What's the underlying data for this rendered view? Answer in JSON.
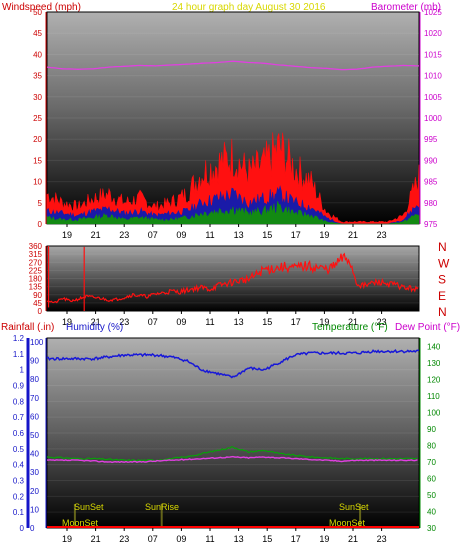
{
  "colors": {
    "windspeed": "#ff1010",
    "gust_band": "#1a1aa8",
    "wind_green": "#138a13",
    "barometer": "#e040e0",
    "direction": "#ff1010",
    "humidity": "#1818d8",
    "temperature": "#0aa00a",
    "dewpoint": "#e040e0",
    "rainfall": "#ff0000",
    "title": "#d8d800",
    "sun_labels": "#d8d800",
    "axis_red": "#cc0000",
    "axis_magenta": "#cc00cc",
    "axis_blue": "#1515c8",
    "axis_green": "#008800",
    "frame": "#000000"
  },
  "chart_data": [
    {
      "type": "line",
      "title": "24 hour graph day   August 30 2016",
      "xlabel": "",
      "x_ticks": [
        "19",
        "21",
        "23",
        "07",
        "09",
        "11",
        "13",
        "15",
        "17",
        "19",
        "21",
        "23"
      ],
      "x_start": 17.5,
      "x_end": 24.5,
      "left_axis": {
        "label": "Windspeed (mph)",
        "ylim": [
          0,
          50
        ],
        "ticks": [
          "0",
          "5",
          "10",
          "15",
          "20",
          "25",
          "30",
          "35",
          "40",
          "45",
          "50"
        ]
      },
      "right_axis": {
        "label": "Barometer (mb)",
        "ylim": [
          975,
          1025
        ],
        "ticks": [
          "975",
          "980",
          "985",
          "990",
          "995",
          "1000",
          "1005",
          "1010",
          "1015",
          "1020",
          "1025"
        ]
      },
      "series": [
        {
          "axis": "right",
          "x": [
            0,
            1,
            2,
            3,
            4,
            5,
            6,
            7,
            8,
            9,
            10,
            11,
            12,
            13,
            14,
            15,
            16,
            17,
            18,
            19,
            20,
            21,
            22,
            23,
            24
          ],
          "values": [
            1012,
            1011.6,
            1011.5,
            1011.6,
            1012,
            1012.2,
            1012.4,
            1012.3,
            1012.5,
            1012.7,
            1012.9,
            1013.1,
            1013.4,
            1013.1,
            1012.9,
            1012.5,
            1012.2,
            1011.9,
            1011.7,
            1011.4,
            1011.5,
            1012,
            1012.2,
            1012.4,
            1012.3
          ]
        },
        {
          "x": [
            0,
            1,
            2,
            3,
            4,
            5,
            6,
            7,
            8,
            9,
            10,
            11,
            12,
            13,
            14,
            15,
            16,
            17,
            18,
            19,
            20,
            21,
            22,
            23,
            24
          ],
          "values": [
            7,
            5,
            4,
            6,
            7,
            5,
            6,
            4,
            5,
            7,
            12,
            14,
            16,
            12,
            14,
            18,
            13,
            10,
            3,
            0.5,
            0.5,
            0.5,
            0.5,
            2,
            11
          ]
        },
        {
          "x": [
            0,
            1,
            2,
            3,
            4,
            5,
            6,
            7,
            8,
            9,
            10,
            11,
            12,
            13,
            14,
            15,
            16,
            17,
            18,
            19,
            20,
            21,
            22,
            23,
            24
          ],
          "values": [
            3,
            2.5,
            2,
            3,
            3.5,
            2.5,
            3,
            2,
            2.5,
            3,
            5,
            6,
            7,
            5,
            6,
            7,
            5,
            4,
            1.5,
            0,
            0,
            0,
            0,
            1,
            5
          ]
        },
        {
          "x": [
            0,
            1,
            2,
            3,
            4,
            5,
            6,
            7,
            8,
            9,
            10,
            11,
            12,
            13,
            14,
            15,
            16,
            17,
            18,
            19,
            20,
            21,
            22,
            23,
            24
          ],
          "values": [
            1.5,
            1,
            1,
            1.5,
            2,
            1,
            1.5,
            1,
            1,
            1.5,
            2.5,
            3,
            3.5,
            2.5,
            3,
            4,
            2.5,
            2,
            0.5,
            0,
            0,
            0,
            0,
            0.5,
            2.5
          ]
        }
      ]
    },
    {
      "type": "line",
      "y_ticks": [
        "360",
        "315",
        "270",
        "225",
        "180",
        "135",
        "90",
        "45",
        "0"
      ],
      "ylim": [
        0,
        360
      ],
      "compass_labels": [
        "N",
        "W",
        "S",
        "E",
        "N"
      ],
      "x_ticks": [
        "19",
        "21",
        "23",
        "07",
        "09",
        "11",
        "13",
        "15",
        "17",
        "19",
        "21",
        "23"
      ],
      "series": [
        {
          "x": [
            0,
            0.5,
            1,
            1.5,
            2,
            2.5,
            3,
            3.5,
            4,
            4.5,
            5,
            5.5,
            6,
            6.5,
            7,
            7.5,
            8,
            8.5,
            9,
            9.5,
            10,
            10.5,
            11,
            11.5,
            12,
            12.5,
            13,
            13.5,
            14,
            14.5,
            15,
            15.5,
            16,
            16.5,
            17,
            17.5,
            18,
            18.5,
            19,
            19.5,
            20,
            20.5,
            21,
            21.5,
            22,
            22.5,
            23,
            23.5,
            24
          ],
          "values": [
            60,
            45,
            70,
            55,
            65,
            80,
            75,
            70,
            60,
            65,
            75,
            90,
            85,
            80,
            95,
            100,
            110,
            105,
            115,
            125,
            130,
            120,
            140,
            150,
            160,
            170,
            175,
            200,
            230,
            235,
            240,
            245,
            235,
            250,
            245,
            240,
            230,
            245,
            290,
            285,
            150,
            140,
            155,
            160,
            150,
            145,
            130,
            125,
            120
          ]
        }
      ]
    },
    {
      "type": "line",
      "x_ticks": [
        "19",
        "21",
        "23",
        "07",
        "09",
        "11",
        "13",
        "15",
        "17",
        "19",
        "21",
        "23"
      ],
      "rainfall_axis": {
        "label": "Rainfall (.in)",
        "ylim": [
          0,
          1.2
        ],
        "ticks": [
          "0",
          "0.1",
          "0.2",
          "0.3",
          "0.4",
          "0.5",
          "0.6",
          "0.7",
          "0.8",
          "0.9",
          "1",
          "1.1",
          "1.2"
        ]
      },
      "humidity_axis": {
        "label": "Humidity (%)",
        "ylim": [
          0,
          100
        ],
        "ticks": [
          "0",
          "10",
          "20",
          "30",
          "40",
          "50",
          "60",
          "70",
          "80",
          "90",
          "100"
        ]
      },
      "temperature_axis": {
        "label": "Temperature (°F)",
        "label2": "Dew Point (°F)",
        "ylim": [
          30,
          145
        ],
        "ticks": [
          "30",
          "40",
          "50",
          "60",
          "70",
          "80",
          "90",
          "100",
          "110",
          "120",
          "130",
          "140"
        ]
      },
      "series": [
        {
          "axis": "humidity",
          "x": [
            0,
            1,
            2,
            3,
            4,
            5,
            6,
            7,
            8,
            9,
            10,
            11,
            12,
            13,
            14,
            15,
            16,
            17,
            18,
            19,
            20,
            21,
            22,
            23,
            24
          ],
          "values": [
            91,
            91,
            91,
            91,
            92,
            93,
            93,
            93,
            92,
            90,
            85,
            83,
            81,
            86,
            85,
            89,
            93,
            94,
            94,
            94,
            94,
            95,
            95,
            95,
            95
          ]
        },
        {
          "axis": "temperature",
          "x": [
            0,
            1,
            2,
            3,
            4,
            5,
            6,
            7,
            8,
            9,
            10,
            11,
            12,
            13,
            14,
            15,
            16,
            17,
            18,
            19,
            20,
            21,
            22,
            23,
            24
          ],
          "values": [
            73,
            72.5,
            72,
            72,
            71.5,
            71,
            71,
            71,
            72,
            73,
            75,
            77,
            79,
            76,
            77,
            75,
            74,
            73,
            72.5,
            72,
            72,
            72,
            72,
            72,
            72
          ]
        },
        {
          "axis": "temperature",
          "x": [
            0,
            1,
            2,
            3,
            4,
            5,
            6,
            7,
            8,
            9,
            10,
            11,
            12,
            13,
            14,
            15,
            16,
            17,
            18,
            19,
            20,
            21,
            22,
            23,
            24
          ],
          "values": [
            71,
            71,
            71,
            70.5,
            70,
            70,
            70,
            70.5,
            71,
            71.5,
            72,
            72.5,
            73,
            72.5,
            73,
            72.5,
            72,
            71.5,
            71,
            70.5,
            71,
            71,
            71,
            71,
            71
          ]
        },
        {
          "axis": "rainfall",
          "x": [
            0,
            24
          ],
          "values": [
            0,
            0
          ]
        }
      ],
      "annotations": {
        "sunset": "SunSet",
        "sunrise": "SunRise",
        "moonset": "MoonSet"
      }
    }
  ]
}
